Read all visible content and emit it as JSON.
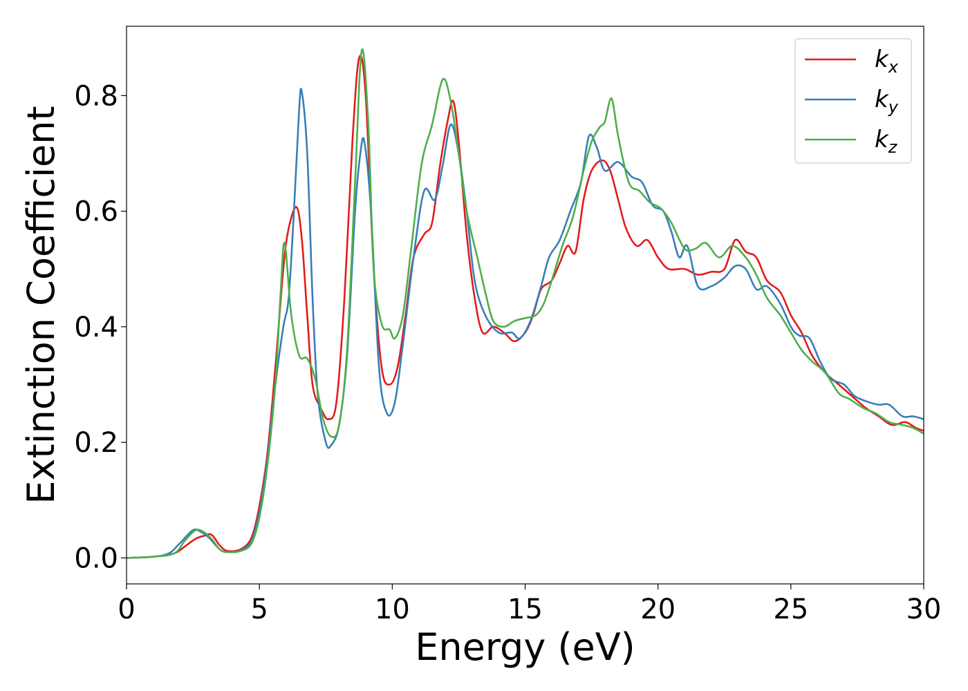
{
  "chart_data": {
    "type": "line",
    "xlabel": "Energy (eV)",
    "ylabel": "Extinction Coefficient",
    "xlim": [
      0,
      30
    ],
    "ylim": [
      -0.045,
      0.92
    ],
    "xticks": [
      0,
      5,
      10,
      15,
      20,
      25,
      30
    ],
    "xtick_labels": [
      "0",
      "5",
      "10",
      "15",
      "20",
      "25",
      "30"
    ],
    "yticks": [
      0.0,
      0.2,
      0.4,
      0.6,
      0.8
    ],
    "ytick_labels": [
      "0.0",
      "0.2",
      "0.4",
      "0.6",
      "0.8"
    ],
    "grid": false,
    "legend_position": "top-right",
    "series": [
      {
        "name": "k",
        "subscript": "x",
        "color": "#e41a1c",
        "points": [
          [
            0,
            0
          ],
          [
            1,
            0.002
          ],
          [
            1.8,
            0.008
          ],
          [
            2.2,
            0.02
          ],
          [
            2.6,
            0.033
          ],
          [
            2.9,
            0.038
          ],
          [
            3.2,
            0.04
          ],
          [
            3.5,
            0.022
          ],
          [
            3.8,
            0.012
          ],
          [
            4.3,
            0.015
          ],
          [
            4.7,
            0.035
          ],
          [
            5.0,
            0.09
          ],
          [
            5.3,
            0.18
          ],
          [
            5.6,
            0.33
          ],
          [
            5.9,
            0.5
          ],
          [
            6.1,
            0.57
          ],
          [
            6.4,
            0.607
          ],
          [
            6.6,
            0.55
          ],
          [
            6.8,
            0.42
          ],
          [
            7.0,
            0.3
          ],
          [
            7.3,
            0.26
          ],
          [
            7.6,
            0.24
          ],
          [
            7.9,
            0.27
          ],
          [
            8.2,
            0.45
          ],
          [
            8.5,
            0.72
          ],
          [
            8.75,
            0.865
          ],
          [
            9.0,
            0.8
          ],
          [
            9.3,
            0.5
          ],
          [
            9.6,
            0.33
          ],
          [
            9.9,
            0.3
          ],
          [
            10.2,
            0.33
          ],
          [
            10.5,
            0.42
          ],
          [
            10.8,
            0.52
          ],
          [
            11.2,
            0.56
          ],
          [
            11.5,
            0.58
          ],
          [
            11.8,
            0.68
          ],
          [
            12.1,
            0.76
          ],
          [
            12.3,
            0.79
          ],
          [
            12.5,
            0.72
          ],
          [
            12.8,
            0.56
          ],
          [
            13.1,
            0.45
          ],
          [
            13.4,
            0.39
          ],
          [
            13.8,
            0.4
          ],
          [
            14.2,
            0.39
          ],
          [
            14.6,
            0.375
          ],
          [
            15.0,
            0.39
          ],
          [
            15.3,
            0.42
          ],
          [
            15.6,
            0.465
          ],
          [
            16.0,
            0.48
          ],
          [
            16.3,
            0.51
          ],
          [
            16.6,
            0.54
          ],
          [
            16.9,
            0.53
          ],
          [
            17.2,
            0.62
          ],
          [
            17.5,
            0.67
          ],
          [
            17.9,
            0.688
          ],
          [
            18.2,
            0.67
          ],
          [
            18.5,
            0.62
          ],
          [
            18.8,
            0.57
          ],
          [
            19.2,
            0.54
          ],
          [
            19.6,
            0.55
          ],
          [
            20.0,
            0.52
          ],
          [
            20.4,
            0.5
          ],
          [
            21.0,
            0.5
          ],
          [
            21.5,
            0.49
          ],
          [
            22.0,
            0.495
          ],
          [
            22.5,
            0.5
          ],
          [
            22.9,
            0.55
          ],
          [
            23.3,
            0.53
          ],
          [
            23.7,
            0.52
          ],
          [
            24.1,
            0.48
          ],
          [
            24.6,
            0.46
          ],
          [
            25.0,
            0.42
          ],
          [
            25.4,
            0.39
          ],
          [
            25.8,
            0.35
          ],
          [
            26.3,
            0.32
          ],
          [
            26.8,
            0.3
          ],
          [
            27.3,
            0.28
          ],
          [
            27.8,
            0.26
          ],
          [
            28.3,
            0.245
          ],
          [
            28.8,
            0.23
          ],
          [
            29.3,
            0.235
          ],
          [
            29.7,
            0.225
          ],
          [
            30.0,
            0.22
          ]
        ]
      },
      {
        "name": "k",
        "subscript": "y",
        "color": "#377eb8",
        "points": [
          [
            0,
            0
          ],
          [
            1,
            0.002
          ],
          [
            1.6,
            0.008
          ],
          [
            2.0,
            0.025
          ],
          [
            2.5,
            0.048
          ],
          [
            2.8,
            0.045
          ],
          [
            3.1,
            0.035
          ],
          [
            3.5,
            0.015
          ],
          [
            3.8,
            0.01
          ],
          [
            4.3,
            0.013
          ],
          [
            4.7,
            0.03
          ],
          [
            5.0,
            0.08
          ],
          [
            5.3,
            0.17
          ],
          [
            5.6,
            0.3
          ],
          [
            5.9,
            0.4
          ],
          [
            6.1,
            0.45
          ],
          [
            6.3,
            0.6
          ],
          [
            6.5,
            0.78
          ],
          [
            6.6,
            0.805
          ],
          [
            6.8,
            0.7
          ],
          [
            7.0,
            0.45
          ],
          [
            7.2,
            0.28
          ],
          [
            7.5,
            0.2
          ],
          [
            7.7,
            0.195
          ],
          [
            8.0,
            0.23
          ],
          [
            8.3,
            0.35
          ],
          [
            8.6,
            0.6
          ],
          [
            8.8,
            0.7
          ],
          [
            8.95,
            0.72
          ],
          [
            9.2,
            0.6
          ],
          [
            9.5,
            0.33
          ],
          [
            9.8,
            0.25
          ],
          [
            10.1,
            0.27
          ],
          [
            10.4,
            0.37
          ],
          [
            10.8,
            0.52
          ],
          [
            11.2,
            0.635
          ],
          [
            11.6,
            0.62
          ],
          [
            11.9,
            0.68
          ],
          [
            12.2,
            0.75
          ],
          [
            12.5,
            0.7
          ],
          [
            12.8,
            0.6
          ],
          [
            13.1,
            0.48
          ],
          [
            13.5,
            0.42
          ],
          [
            14.0,
            0.39
          ],
          [
            14.5,
            0.39
          ],
          [
            14.8,
            0.38
          ],
          [
            15.2,
            0.41
          ],
          [
            15.6,
            0.47
          ],
          [
            15.9,
            0.52
          ],
          [
            16.3,
            0.55
          ],
          [
            16.7,
            0.6
          ],
          [
            17.1,
            0.65
          ],
          [
            17.4,
            0.73
          ],
          [
            17.7,
            0.71
          ],
          [
            18.0,
            0.67
          ],
          [
            18.5,
            0.685
          ],
          [
            19.0,
            0.66
          ],
          [
            19.4,
            0.65
          ],
          [
            19.8,
            0.61
          ],
          [
            20.2,
            0.6
          ],
          [
            20.5,
            0.565
          ],
          [
            20.8,
            0.52
          ],
          [
            21.1,
            0.54
          ],
          [
            21.5,
            0.47
          ],
          [
            22.0,
            0.47
          ],
          [
            22.5,
            0.485
          ],
          [
            22.9,
            0.505
          ],
          [
            23.3,
            0.5
          ],
          [
            23.7,
            0.465
          ],
          [
            24.1,
            0.47
          ],
          [
            24.6,
            0.44
          ],
          [
            25.0,
            0.4
          ],
          [
            25.3,
            0.385
          ],
          [
            25.7,
            0.38
          ],
          [
            26.1,
            0.34
          ],
          [
            26.5,
            0.31
          ],
          [
            27.0,
            0.3
          ],
          [
            27.4,
            0.28
          ],
          [
            27.9,
            0.27
          ],
          [
            28.3,
            0.265
          ],
          [
            28.7,
            0.265
          ],
          [
            29.2,
            0.245
          ],
          [
            29.6,
            0.245
          ],
          [
            30.0,
            0.24
          ]
        ]
      },
      {
        "name": "k",
        "subscript": "z",
        "color": "#4daf4a",
        "points": [
          [
            0,
            0
          ],
          [
            1,
            0.002
          ],
          [
            1.8,
            0.008
          ],
          [
            2.2,
            0.03
          ],
          [
            2.6,
            0.048
          ],
          [
            2.9,
            0.045
          ],
          [
            3.2,
            0.033
          ],
          [
            3.5,
            0.015
          ],
          [
            3.8,
            0.01
          ],
          [
            4.3,
            0.012
          ],
          [
            4.7,
            0.025
          ],
          [
            5.0,
            0.07
          ],
          [
            5.3,
            0.16
          ],
          [
            5.6,
            0.3
          ],
          [
            5.8,
            0.46
          ],
          [
            5.95,
            0.545
          ],
          [
            6.2,
            0.42
          ],
          [
            6.5,
            0.35
          ],
          [
            6.8,
            0.345
          ],
          [
            7.1,
            0.31
          ],
          [
            7.4,
            0.24
          ],
          [
            7.7,
            0.21
          ],
          [
            8.0,
            0.23
          ],
          [
            8.3,
            0.36
          ],
          [
            8.6,
            0.65
          ],
          [
            8.85,
            0.878
          ],
          [
            9.1,
            0.75
          ],
          [
            9.3,
            0.5
          ],
          [
            9.6,
            0.405
          ],
          [
            9.9,
            0.395
          ],
          [
            10.1,
            0.38
          ],
          [
            10.4,
            0.42
          ],
          [
            10.7,
            0.53
          ],
          [
            11.1,
            0.68
          ],
          [
            11.5,
            0.75
          ],
          [
            11.9,
            0.828
          ],
          [
            12.2,
            0.79
          ],
          [
            12.5,
            0.7
          ],
          [
            12.8,
            0.6
          ],
          [
            13.2,
            0.52
          ],
          [
            13.5,
            0.46
          ],
          [
            13.8,
            0.41
          ],
          [
            14.2,
            0.4
          ],
          [
            14.6,
            0.41
          ],
          [
            15.0,
            0.415
          ],
          [
            15.4,
            0.42
          ],
          [
            15.7,
            0.44
          ],
          [
            16.0,
            0.48
          ],
          [
            16.4,
            0.54
          ],
          [
            16.8,
            0.59
          ],
          [
            17.2,
            0.67
          ],
          [
            17.5,
            0.72
          ],
          [
            17.8,
            0.745
          ],
          [
            18.0,
            0.755
          ],
          [
            18.25,
            0.795
          ],
          [
            18.5,
            0.73
          ],
          [
            18.9,
            0.65
          ],
          [
            19.3,
            0.635
          ],
          [
            19.7,
            0.615
          ],
          [
            20.1,
            0.605
          ],
          [
            20.5,
            0.58
          ],
          [
            21.0,
            0.535
          ],
          [
            21.4,
            0.535
          ],
          [
            21.8,
            0.545
          ],
          [
            22.3,
            0.52
          ],
          [
            22.8,
            0.54
          ],
          [
            23.3,
            0.52
          ],
          [
            23.7,
            0.49
          ],
          [
            24.1,
            0.45
          ],
          [
            24.6,
            0.42
          ],
          [
            25.0,
            0.39
          ],
          [
            25.4,
            0.36
          ],
          [
            25.8,
            0.34
          ],
          [
            26.3,
            0.32
          ],
          [
            26.8,
            0.285
          ],
          [
            27.2,
            0.275
          ],
          [
            27.7,
            0.26
          ],
          [
            28.2,
            0.25
          ],
          [
            28.7,
            0.235
          ],
          [
            29.2,
            0.23
          ],
          [
            29.6,
            0.225
          ],
          [
            30.0,
            0.215
          ]
        ]
      }
    ]
  }
}
